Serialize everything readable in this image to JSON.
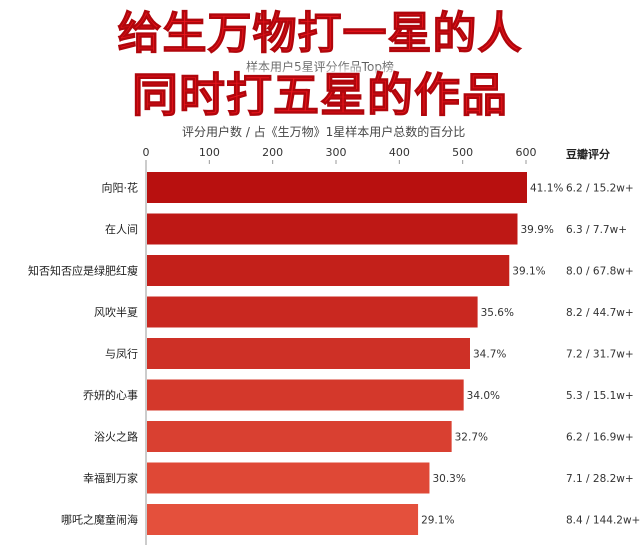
{
  "headline": {
    "line1": "给生万物打一星的人",
    "line2": "同时打五星的作品"
  },
  "subtitle": "样本用户5星评分作品Top榜",
  "chart_subtitle": "评分用户数 / 占《生万物》1星样本用户总数的百分比",
  "right_header": "豆瓣评分",
  "chart_data": {
    "type": "bar",
    "orientation": "horizontal",
    "categories": [
      "向阳·花",
      "在人间",
      "知否知否应是绿肥红瘦",
      "风吹半夏",
      "与凤行",
      "乔妍的心事",
      "浴火之路",
      "幸福到万家",
      "哪吒之魔童闹海"
    ],
    "values": [
      600,
      585,
      572,
      522,
      510,
      500,
      481,
      446,
      428
    ],
    "percent_labels": [
      "41.1%",
      "39.9%",
      "39.1%",
      "35.6%",
      "34.7%",
      "34.0%",
      "32.7%",
      "30.3%",
      "29.1%"
    ],
    "douban_labels": [
      "6.2 / 15.2w+",
      "6.3 / 7.7w+",
      "8.0 / 67.8w+",
      "8.2 / 44.7w+",
      "7.2 / 31.7w+",
      "5.3 / 15.1w+",
      "6.2 / 16.9w+",
      "7.1 / 28.2w+",
      "8.4 / 144.2w+"
    ],
    "xlim": [
      0,
      600
    ],
    "x_ticks": [
      0,
      100,
      200,
      300,
      400,
      500,
      600
    ],
    "colors": {
      "bar_dark": "#b8100f",
      "bar_light": "#e4503c",
      "headline": "#e8141b"
    }
  }
}
